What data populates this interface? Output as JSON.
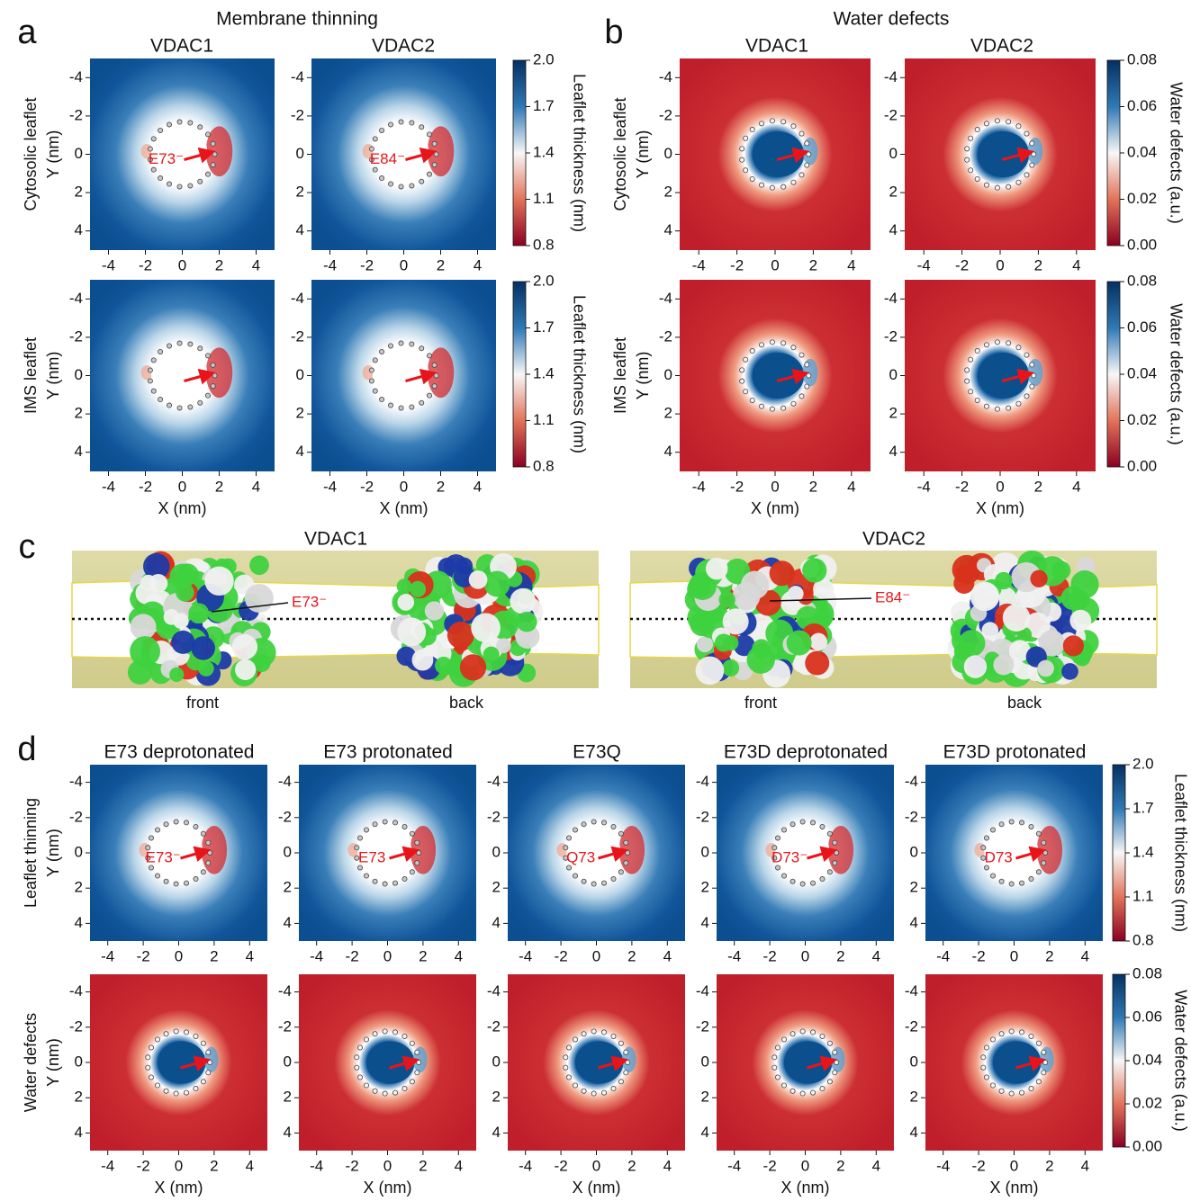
{
  "panel_a": {
    "letter": "a",
    "title": "Membrane thinning",
    "columns": [
      "VDAC1",
      "VDAC2"
    ],
    "rows": [
      "Cytosolic leaflet",
      "IMS leaflet"
    ],
    "residues": [
      "E73⁻",
      "E84⁻"
    ]
  },
  "panel_b": {
    "letter": "b",
    "title": "Water defects",
    "columns": [
      "VDAC1",
      "VDAC2"
    ],
    "rows": [
      "Cytosolic leaflet",
      "IMS leaflet"
    ]
  },
  "panel_c": {
    "letter": "c",
    "proteins": [
      {
        "name": "VDAC1",
        "residue": "E73⁻",
        "views": [
          "front",
          "back"
        ]
      },
      {
        "name": "VDAC2",
        "residue": "E84⁻",
        "views": [
          "front",
          "back"
        ]
      }
    ]
  },
  "panel_d": {
    "letter": "d",
    "columns": [
      "E73 deprotonated",
      "E73 protonated",
      "E73Q",
      "E73D deprotonated",
      "E73D protonated"
    ],
    "residues": [
      "E73⁻",
      "E73",
      "Q73",
      "D73⁻",
      "D73"
    ],
    "rows": [
      "Leaflet thinning",
      "Water defects"
    ]
  },
  "axes": {
    "x_label": "X (nm)",
    "y_label": "Y (nm)",
    "ticks": [
      "-4",
      "-2",
      "0",
      "2",
      "4"
    ]
  },
  "colorbars": {
    "thickness": {
      "label": "Leaflet thickness (nm)",
      "ticks": [
        "2.0",
        "1.7",
        "1.4",
        "1.1",
        "0.8"
      ]
    },
    "water": {
      "label": "Water defects (a.u.)",
      "ticks": [
        "0.08",
        "0.06",
        "0.04",
        "0.02",
        "0.00"
      ]
    }
  }
}
